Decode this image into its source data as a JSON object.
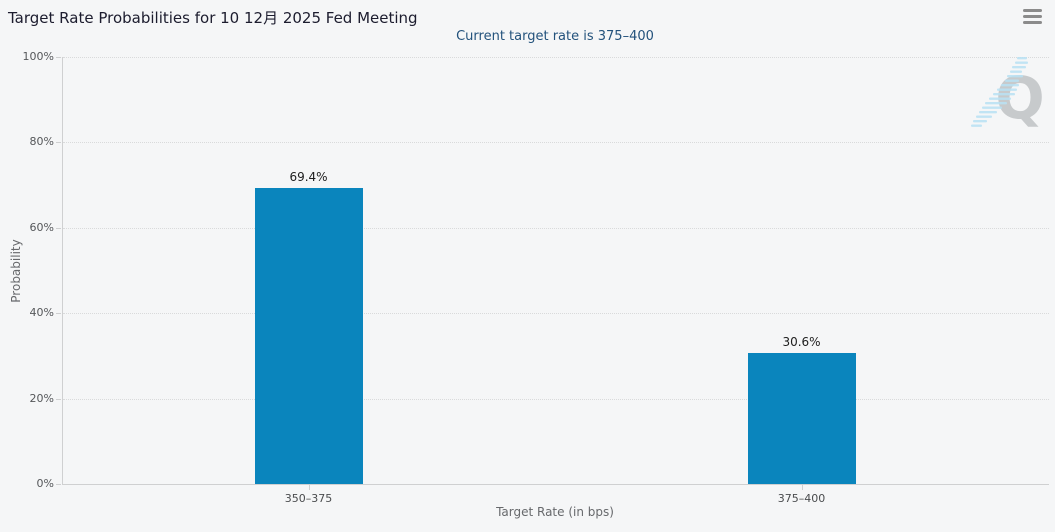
{
  "header": {
    "title": "Target Rate Probabilities for 10 12月 2025 Fed Meeting",
    "subtitle": "Current target rate is 375–400"
  },
  "watermark": {
    "letter": "Q"
  },
  "chart_data": {
    "type": "bar",
    "categories": [
      "350–375",
      "375–400"
    ],
    "values": [
      69.4,
      30.6
    ],
    "value_labels": [
      "69.4%",
      "30.6%"
    ],
    "title": "Target Rate Probabilities for 10 12月 2025 Fed Meeting",
    "subtitle": "Current target rate is 375–400",
    "xlabel": "Target Rate (in bps)",
    "ylabel": "Probability",
    "ylim": [
      0,
      100
    ],
    "yticks": [
      "0%",
      "20%",
      "40%",
      "60%",
      "80%",
      "100%"
    ],
    "grid": "horizontal-dotted",
    "legend": "none",
    "bar_color": "#0a85bd"
  },
  "colors": {
    "background": "#f5f6f7",
    "bar": "#0a85bd",
    "title_text": "#1c1c2e",
    "subtitle_text": "#23527c",
    "axis_line": "#cfd0d1",
    "gridline": "#d9dadb",
    "tick_text": "#55575a",
    "menu_icon": "#8b8b8b",
    "watermark_gray": "#c7cacc",
    "watermark_blue": "#b9e2f4"
  }
}
